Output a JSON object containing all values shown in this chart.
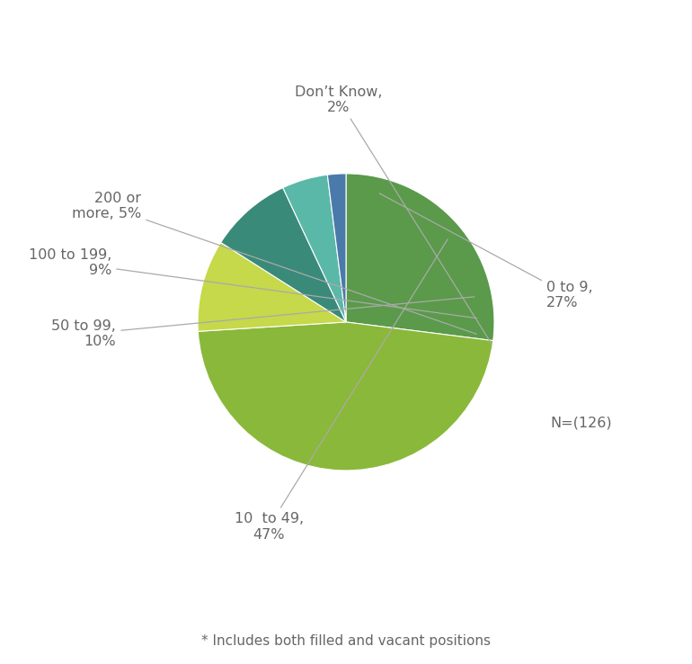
{
  "slices": [
    {
      "label": "0 to 9,\n27%",
      "value": 27,
      "color": "#5a9a4a"
    },
    {
      "label": "10  to 49,\n47%",
      "value": 47,
      "color": "#8ab83a"
    },
    {
      "label": "50 to 99,\n10%",
      "value": 10,
      "color": "#c5d94a"
    },
    {
      "label": "100 to 199,\n9%",
      "value": 9,
      "color": "#3a8a7a"
    },
    {
      "label": "200 or\nmore, 5%",
      "value": 5,
      "color": "#5ab8a8"
    },
    {
      "label": "Don’t Know,\n2%",
      "value": 2,
      "color": "#4a7aaa"
    }
  ],
  "annotation_n": "N=(126)",
  "footnote": "* Includes both filled and vacant positions",
  "background_color": "#ffffff",
  "text_color": "#666666",
  "label_fontsize": 11.5,
  "footnote_fontsize": 11,
  "n_fontsize": 11.5
}
